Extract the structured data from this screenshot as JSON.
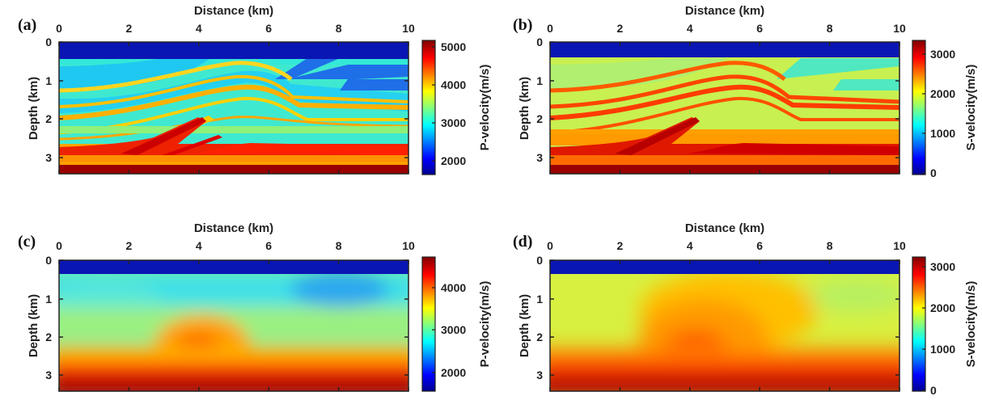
{
  "chart_data": [
    {
      "type": "heatmap",
      "panel": "(a)",
      "xlabel": "Distance (km)",
      "ylabel": "Depth (km)",
      "colorbar_label": "P-velocity(m/s)",
      "x_ticks": [
        "0",
        "2",
        "4",
        "6",
        "8",
        "10"
      ],
      "y_ticks": [
        "0",
        "1",
        "2",
        "3"
      ],
      "colorbar_ticks": [
        "2000",
        "3000",
        "4000",
        "5000"
      ],
      "xlim": [
        0,
        10
      ],
      "ylim": [
        0,
        3.45
      ],
      "clim": [
        1500,
        5000
      ],
      "model": "true",
      "colormap": "jet"
    },
    {
      "type": "heatmap",
      "panel": "(b)",
      "xlabel": "Distance (km)",
      "ylabel": "Depth (km)",
      "colorbar_label": "S-velocity(m/s)",
      "x_ticks": [
        "0",
        "2",
        "4",
        "6",
        "8",
        "10"
      ],
      "y_ticks": [
        "0",
        "1",
        "2",
        "3"
      ],
      "colorbar_ticks": [
        "0",
        "1000",
        "2000",
        "3000"
      ],
      "xlim": [
        0,
        10
      ],
      "ylim": [
        0,
        3.45
      ],
      "clim": [
        0,
        3400
      ],
      "model": "true",
      "colormap": "jet"
    },
    {
      "type": "heatmap",
      "panel": "(c)",
      "xlabel": "Distance (km)",
      "ylabel": "Depth (km)",
      "colorbar_label": "P-velocity(m/s)",
      "x_ticks": [
        "0",
        "2",
        "4",
        "6",
        "8",
        "10"
      ],
      "y_ticks": [
        "0",
        "1",
        "2",
        "3"
      ],
      "colorbar_ticks": [
        "2000",
        "3000",
        "4000"
      ],
      "xlim": [
        0,
        10
      ],
      "ylim": [
        0,
        3.45
      ],
      "clim": [
        1500,
        4800
      ],
      "model": "smooth",
      "colormap": "jet"
    },
    {
      "type": "heatmap",
      "panel": "(d)",
      "xlabel": "Distance (km)",
      "ylabel": "Depth (km)",
      "colorbar_label": "S-velocity(m/s)",
      "x_ticks": [
        "0",
        "2",
        "4",
        "6",
        "8",
        "10"
      ],
      "y_ticks": [
        "0",
        "1",
        "2",
        "3"
      ],
      "colorbar_ticks": [
        "0",
        "1000",
        "2000",
        "3000"
      ],
      "xlim": [
        0,
        10
      ],
      "ylim": [
        0,
        3.45
      ],
      "clim": [
        0,
        3200
      ],
      "model": "smooth",
      "colormap": "jet"
    }
  ]
}
